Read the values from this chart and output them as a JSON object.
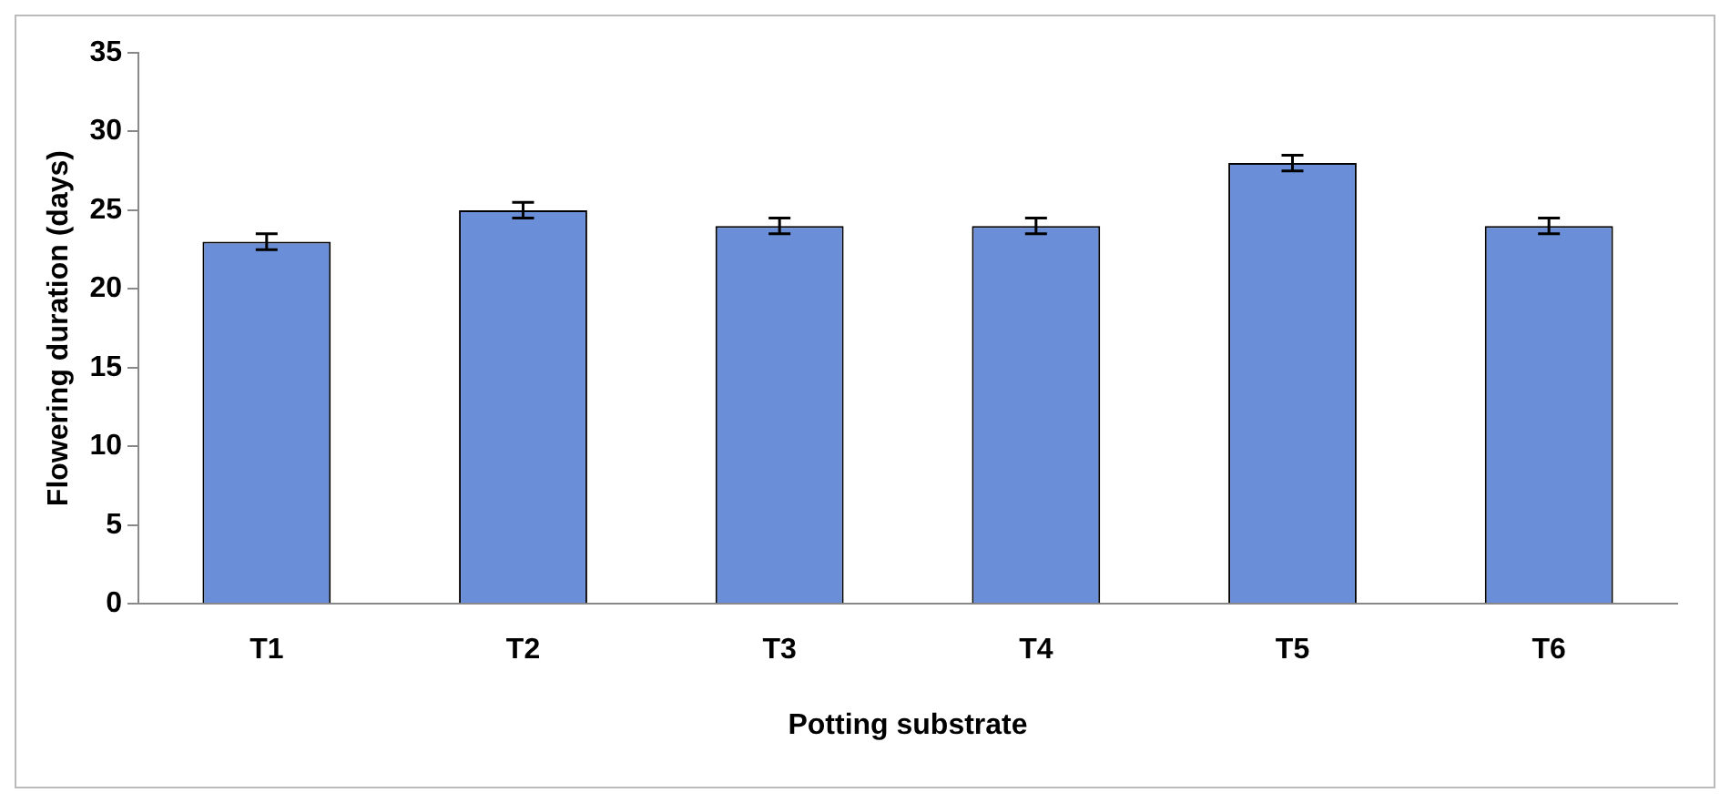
{
  "chart_data": {
    "type": "bar",
    "xlabel": "Potting substrate",
    "ylabel": "Flowering duration (days)",
    "categories": [
      "T1",
      "T2",
      "T3",
      "T4",
      "T5",
      "T6"
    ],
    "values": [
      23,
      25,
      24,
      24,
      28,
      24
    ],
    "errors": [
      0.5,
      0.5,
      0.5,
      0.5,
      0.5,
      0.5
    ],
    "color": "#6a8fd8",
    "ylim": [
      0,
      35
    ],
    "yticks": [
      0,
      5,
      10,
      15,
      20,
      25,
      30,
      35
    ],
    "grid": false,
    "legend": false
  }
}
